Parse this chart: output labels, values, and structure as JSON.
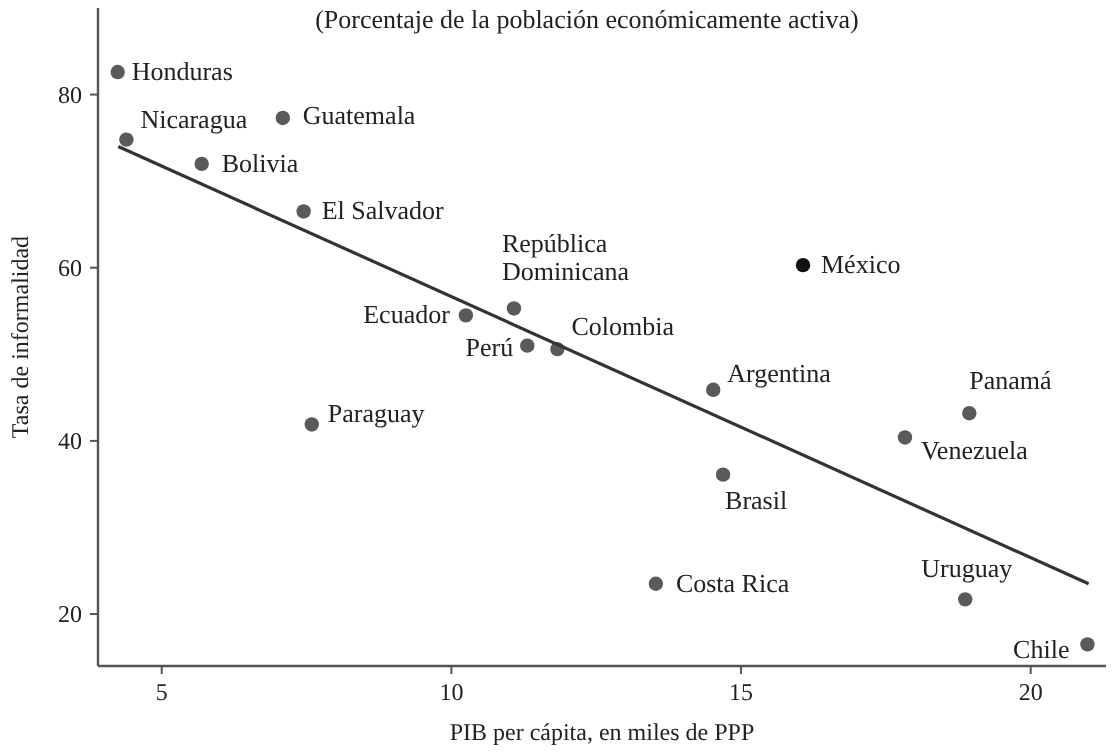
{
  "chart_data": {
    "type": "scatter",
    "title": "(Porcentaje de la población económicamente activa)",
    "xlabel": "PIB per cápita, en miles de PPP",
    "ylabel": "Tasa de informalidad",
    "xlim": [
      3.9,
      21.3
    ],
    "ylim": [
      14,
      90
    ],
    "xticks": [
      5,
      10,
      15,
      20
    ],
    "yticks": [
      20,
      40,
      60,
      80
    ],
    "grid": false,
    "marker": "circle",
    "series": [
      {
        "x": [
          4.24,
          4.39,
          7.09,
          5.69,
          7.45,
          10.25,
          11.08,
          11.31,
          11.83,
          7.59,
          16.07,
          14.52,
          18.94,
          17.83,
          14.69,
          13.53,
          18.87,
          20.98
        ],
        "values": [
          82.6,
          74.8,
          77.3,
          72.0,
          66.5,
          54.5,
          55.3,
          51.0,
          50.6,
          41.9,
          60.3,
          45.9,
          43.2,
          40.4,
          36.1,
          23.5,
          21.7,
          16.5
        ],
        "colors": [
          "#5a5a5a",
          "#5a5a5a",
          "#5a5a5a",
          "#5a5a5a",
          "#5a5a5a",
          "#5a5a5a",
          "#5a5a5a",
          "#5a5a5a",
          "#5a5a5a",
          "#5a5a5a",
          "#111111",
          "#5a5a5a",
          "#5a5a5a",
          "#5a5a5a",
          "#5a5a5a",
          "#5a5a5a",
          "#5a5a5a",
          "#5a5a5a"
        ]
      },
      {
        "type": "line",
        "x": [
          4.25,
          21.0
        ],
        "values": [
          74.0,
          23.5
        ],
        "color": "#333333",
        "line_style": "solid",
        "marker": "none"
      }
    ],
    "annotations": [
      {
        "text": "Honduras",
        "x": 4.24,
        "y": 82.6
      },
      {
        "text": "Nicaragua",
        "x": 4.39,
        "y": 74.8
      },
      {
        "text": "Guatemala",
        "x": 7.09,
        "y": 77.3
      },
      {
        "text": "Bolivia",
        "x": 5.69,
        "y": 72.0
      },
      {
        "text": "El Salvador",
        "x": 7.45,
        "y": 66.5
      },
      {
        "text": "Ecuador",
        "x": 10.25,
        "y": 54.5
      },
      {
        "text": "República\nDominicana",
        "x": 11.08,
        "y": 55.3
      },
      {
        "text": "Perú",
        "x": 11.31,
        "y": 51.0
      },
      {
        "text": "Colombia",
        "x": 11.83,
        "y": 50.6
      },
      {
        "text": "Paraguay",
        "x": 7.59,
        "y": 41.9
      },
      {
        "text": "México",
        "x": 16.07,
        "y": 60.3
      },
      {
        "text": "Argentina",
        "x": 14.52,
        "y": 45.9
      },
      {
        "text": "Panamá",
        "x": 18.94,
        "y": 43.2
      },
      {
        "text": "Venezuela",
        "x": 17.83,
        "y": 40.4
      },
      {
        "text": "Brasil",
        "x": 14.69,
        "y": 36.1
      },
      {
        "text": "Costa Rica",
        "x": 13.53,
        "y": 23.5
      },
      {
        "text": "Uruguay",
        "x": 18.87,
        "y": 21.7
      },
      {
        "text": "Chile",
        "x": 20.98,
        "y": 16.5
      }
    ]
  }
}
